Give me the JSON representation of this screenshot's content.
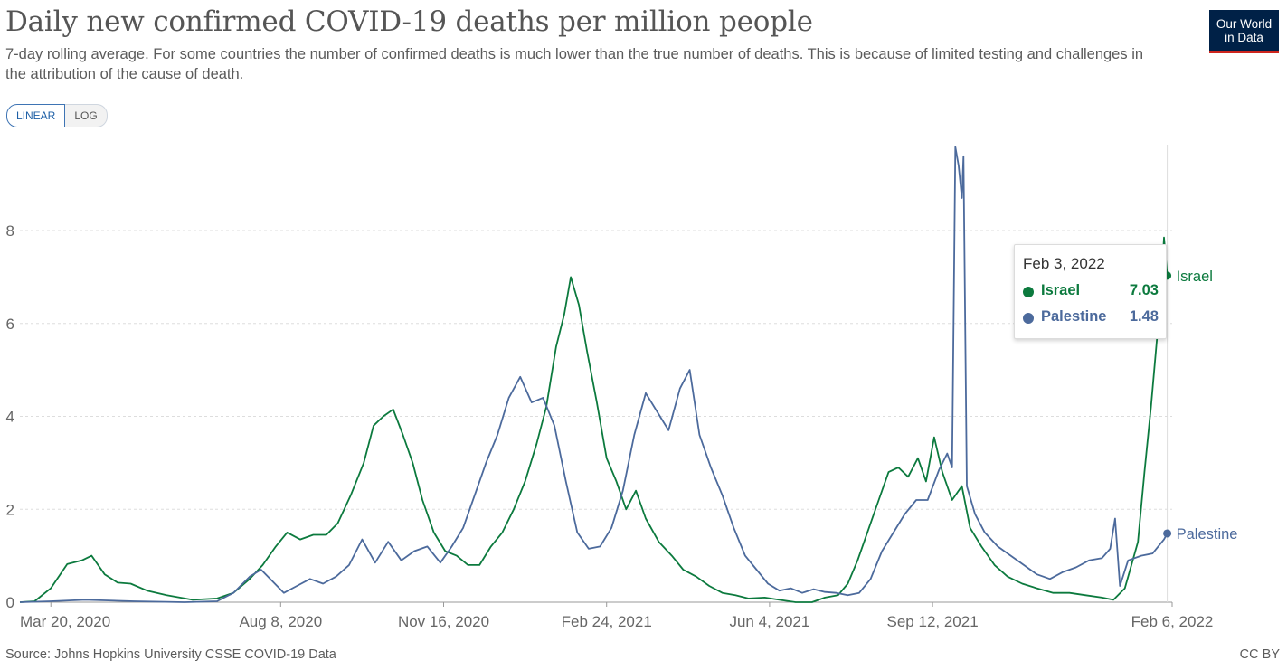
{
  "header": {
    "title": "Daily new confirmed COVID-19 deaths per million people",
    "subtitle": "7-day rolling average. For some countries the number of confirmed deaths is much lower than the true number of deaths. This is because of limited testing and challenges in the attribution of the cause of death.",
    "logo_line1": "Our World",
    "logo_line2": "in Data"
  },
  "controls": {
    "linear_label": "LINEAR",
    "log_label": "LOG",
    "selected": "LINEAR"
  },
  "footer": {
    "source": "Source: Johns Hopkins University CSSE COVID-19 Data",
    "license": "CC BY"
  },
  "tooltip": {
    "date": "Feb 3, 2022",
    "rows": [
      {
        "name": "Israel",
        "value": "7.03"
      },
      {
        "name": "Palestine",
        "value": "1.48"
      }
    ]
  },
  "colors": {
    "israel": "#0c7a3e",
    "palestine": "#4c6a9c",
    "grid": "#dddddd",
    "text": "#5b5b5b"
  },
  "chart_data": {
    "type": "line",
    "title": "Daily new confirmed COVID-19 deaths per million people",
    "ylabel": "",
    "xlabel": "",
    "ylim": [
      0,
      9.8
    ],
    "yticks": [
      0,
      2,
      4,
      6,
      8
    ],
    "x_start": "2020-03-01",
    "x_end": "2022-02-06",
    "xticks": [
      {
        "date": "2020-03-20",
        "label": "Mar 20, 2020"
      },
      {
        "date": "2020-08-08",
        "label": "Aug 8, 2020"
      },
      {
        "date": "2020-11-16",
        "label": "Nov 16, 2020"
      },
      {
        "date": "2021-02-24",
        "label": "Feb 24, 2021"
      },
      {
        "date": "2021-06-04",
        "label": "Jun 4, 2021"
      },
      {
        "date": "2021-09-12",
        "label": "Sep 12, 2021"
      },
      {
        "date": "2022-02-06",
        "label": "Feb 6, 2022"
      }
    ],
    "grid": "horizontal dashed",
    "legend": "end-of-line labels",
    "highlight_date": "2022-02-03",
    "series": [
      {
        "name": "Israel",
        "color": "#0c7a3e",
        "points": [
          [
            "2020-03-01",
            0
          ],
          [
            "2020-03-10",
            0.02
          ],
          [
            "2020-03-20",
            0.3
          ],
          [
            "2020-03-30",
            0.82
          ],
          [
            "2020-04-08",
            0.9
          ],
          [
            "2020-04-14",
            1.0
          ],
          [
            "2020-04-22",
            0.6
          ],
          [
            "2020-04-30",
            0.42
          ],
          [
            "2020-05-08",
            0.4
          ],
          [
            "2020-05-18",
            0.25
          ],
          [
            "2020-05-30",
            0.15
          ],
          [
            "2020-06-15",
            0.05
          ],
          [
            "2020-06-30",
            0.08
          ],
          [
            "2020-07-10",
            0.2
          ],
          [
            "2020-07-20",
            0.5
          ],
          [
            "2020-07-28",
            0.8
          ],
          [
            "2020-08-05",
            1.2
          ],
          [
            "2020-08-12",
            1.5
          ],
          [
            "2020-08-20",
            1.35
          ],
          [
            "2020-08-28",
            1.45
          ],
          [
            "2020-09-05",
            1.45
          ],
          [
            "2020-09-12",
            1.7
          ],
          [
            "2020-09-20",
            2.3
          ],
          [
            "2020-09-28",
            3.0
          ],
          [
            "2020-10-04",
            3.8
          ],
          [
            "2020-10-10",
            4.0
          ],
          [
            "2020-10-16",
            4.15
          ],
          [
            "2020-10-22",
            3.6
          ],
          [
            "2020-10-28",
            3.0
          ],
          [
            "2020-11-03",
            2.2
          ],
          [
            "2020-11-10",
            1.5
          ],
          [
            "2020-11-17",
            1.1
          ],
          [
            "2020-11-24",
            1.0
          ],
          [
            "2020-12-01",
            0.8
          ],
          [
            "2020-12-08",
            0.8
          ],
          [
            "2020-12-15",
            1.2
          ],
          [
            "2020-12-22",
            1.5
          ],
          [
            "2020-12-29",
            2.0
          ],
          [
            "2021-01-05",
            2.6
          ],
          [
            "2021-01-12",
            3.4
          ],
          [
            "2021-01-18",
            4.2
          ],
          [
            "2021-01-24",
            5.5
          ],
          [
            "2021-01-29",
            6.2
          ],
          [
            "2021-02-02",
            7.0
          ],
          [
            "2021-02-07",
            6.4
          ],
          [
            "2021-02-12",
            5.4
          ],
          [
            "2021-02-18",
            4.3
          ],
          [
            "2021-02-24",
            3.1
          ],
          [
            "2021-03-02",
            2.6
          ],
          [
            "2021-03-08",
            2.0
          ],
          [
            "2021-03-14",
            2.4
          ],
          [
            "2021-03-20",
            1.8
          ],
          [
            "2021-03-28",
            1.3
          ],
          [
            "2021-04-05",
            1.0
          ],
          [
            "2021-04-12",
            0.7
          ],
          [
            "2021-04-20",
            0.55
          ],
          [
            "2021-04-28",
            0.35
          ],
          [
            "2021-05-06",
            0.2
          ],
          [
            "2021-05-14",
            0.15
          ],
          [
            "2021-05-22",
            0.08
          ],
          [
            "2021-06-01",
            0.1
          ],
          [
            "2021-06-10",
            0.05
          ],
          [
            "2021-06-20",
            0.0
          ],
          [
            "2021-06-30",
            0.0
          ],
          [
            "2021-07-08",
            0.1
          ],
          [
            "2021-07-16",
            0.15
          ],
          [
            "2021-07-22",
            0.4
          ],
          [
            "2021-07-28",
            0.9
          ],
          [
            "2021-08-04",
            1.6
          ],
          [
            "2021-08-10",
            2.2
          ],
          [
            "2021-08-16",
            2.8
          ],
          [
            "2021-08-22",
            2.9
          ],
          [
            "2021-08-28",
            2.7
          ],
          [
            "2021-09-03",
            3.1
          ],
          [
            "2021-09-08",
            2.6
          ],
          [
            "2021-09-13",
            3.55
          ],
          [
            "2021-09-18",
            2.8
          ],
          [
            "2021-09-24",
            2.2
          ],
          [
            "2021-09-30",
            2.5
          ],
          [
            "2021-10-05",
            1.6
          ],
          [
            "2021-10-12",
            1.2
          ],
          [
            "2021-10-20",
            0.8
          ],
          [
            "2021-10-28",
            0.55
          ],
          [
            "2021-11-06",
            0.4
          ],
          [
            "2021-11-15",
            0.3
          ],
          [
            "2021-11-25",
            0.2
          ],
          [
            "2021-12-05",
            0.2
          ],
          [
            "2021-12-15",
            0.15
          ],
          [
            "2021-12-25",
            0.1
          ],
          [
            "2022-01-01",
            0.05
          ],
          [
            "2022-01-08",
            0.3
          ],
          [
            "2022-01-12",
            0.8
          ],
          [
            "2022-01-16",
            1.3
          ],
          [
            "2022-01-20",
            2.8
          ],
          [
            "2022-01-24",
            4.2
          ],
          [
            "2022-01-27",
            5.4
          ],
          [
            "2022-01-30",
            6.6
          ],
          [
            "2022-02-01",
            7.85
          ],
          [
            "2022-02-03",
            7.03
          ]
        ]
      },
      {
        "name": "Palestine",
        "color": "#4c6a9c",
        "points": [
          [
            "2020-03-01",
            0
          ],
          [
            "2020-03-20",
            0.02
          ],
          [
            "2020-04-10",
            0.05
          ],
          [
            "2020-05-10",
            0.02
          ],
          [
            "2020-06-10",
            0.0
          ],
          [
            "2020-06-30",
            0.02
          ],
          [
            "2020-07-10",
            0.2
          ],
          [
            "2020-07-20",
            0.55
          ],
          [
            "2020-07-27",
            0.7
          ],
          [
            "2020-08-03",
            0.45
          ],
          [
            "2020-08-10",
            0.2
          ],
          [
            "2020-08-18",
            0.35
          ],
          [
            "2020-08-26",
            0.5
          ],
          [
            "2020-09-03",
            0.4
          ],
          [
            "2020-09-11",
            0.55
          ],
          [
            "2020-09-19",
            0.8
          ],
          [
            "2020-09-27",
            1.35
          ],
          [
            "2020-10-05",
            0.85
          ],
          [
            "2020-10-13",
            1.3
          ],
          [
            "2020-10-21",
            0.9
          ],
          [
            "2020-10-29",
            1.1
          ],
          [
            "2020-11-06",
            1.2
          ],
          [
            "2020-11-14",
            0.85
          ],
          [
            "2020-11-21",
            1.2
          ],
          [
            "2020-11-28",
            1.6
          ],
          [
            "2020-12-05",
            2.3
          ],
          [
            "2020-12-12",
            3.0
          ],
          [
            "2020-12-19",
            3.6
          ],
          [
            "2020-12-26",
            4.4
          ],
          [
            "2021-01-02",
            4.85
          ],
          [
            "2021-01-09",
            4.3
          ],
          [
            "2021-01-16",
            4.4
          ],
          [
            "2021-01-23",
            3.8
          ],
          [
            "2021-01-30",
            2.6
          ],
          [
            "2021-02-06",
            1.5
          ],
          [
            "2021-02-13",
            1.15
          ],
          [
            "2021-02-20",
            1.2
          ],
          [
            "2021-02-27",
            1.6
          ],
          [
            "2021-03-06",
            2.4
          ],
          [
            "2021-03-13",
            3.6
          ],
          [
            "2021-03-20",
            4.5
          ],
          [
            "2021-03-27",
            4.1
          ],
          [
            "2021-04-03",
            3.7
          ],
          [
            "2021-04-10",
            4.6
          ],
          [
            "2021-04-16",
            5.0
          ],
          [
            "2021-04-22",
            3.6
          ],
          [
            "2021-04-29",
            2.9
          ],
          [
            "2021-05-06",
            2.3
          ],
          [
            "2021-05-13",
            1.6
          ],
          [
            "2021-05-20",
            1.0
          ],
          [
            "2021-05-27",
            0.7
          ],
          [
            "2021-06-03",
            0.4
          ],
          [
            "2021-06-10",
            0.25
          ],
          [
            "2021-06-17",
            0.3
          ],
          [
            "2021-06-24",
            0.2
          ],
          [
            "2021-07-01",
            0.28
          ],
          [
            "2021-07-08",
            0.22
          ],
          [
            "2021-07-15",
            0.2
          ],
          [
            "2021-07-22",
            0.15
          ],
          [
            "2021-07-29",
            0.2
          ],
          [
            "2021-08-05",
            0.5
          ],
          [
            "2021-08-12",
            1.1
          ],
          [
            "2021-08-19",
            1.5
          ],
          [
            "2021-08-26",
            1.9
          ],
          [
            "2021-09-02",
            2.2
          ],
          [
            "2021-09-09",
            2.2
          ],
          [
            "2021-09-16",
            2.85
          ],
          [
            "2021-09-21",
            3.2
          ],
          [
            "2021-09-24",
            2.9
          ],
          [
            "2021-09-26",
            9.8
          ],
          [
            "2021-09-28",
            9.4
          ],
          [
            "2021-09-30",
            8.7
          ],
          [
            "2021-10-01",
            9.6
          ],
          [
            "2021-10-03",
            2.5
          ],
          [
            "2021-10-08",
            1.9
          ],
          [
            "2021-10-14",
            1.5
          ],
          [
            "2021-10-22",
            1.2
          ],
          [
            "2021-10-30",
            1.0
          ],
          [
            "2021-11-07",
            0.8
          ],
          [
            "2021-11-15",
            0.6
          ],
          [
            "2021-11-23",
            0.5
          ],
          [
            "2021-12-01",
            0.65
          ],
          [
            "2021-12-09",
            0.75
          ],
          [
            "2021-12-17",
            0.9
          ],
          [
            "2021-12-25",
            0.95
          ],
          [
            "2021-12-30",
            1.15
          ],
          [
            "2022-01-02",
            1.8
          ],
          [
            "2022-01-05",
            0.35
          ],
          [
            "2022-01-10",
            0.9
          ],
          [
            "2022-01-18",
            1.0
          ],
          [
            "2022-01-25",
            1.05
          ],
          [
            "2022-02-01",
            1.35
          ],
          [
            "2022-02-03",
            1.48
          ]
        ]
      }
    ]
  }
}
